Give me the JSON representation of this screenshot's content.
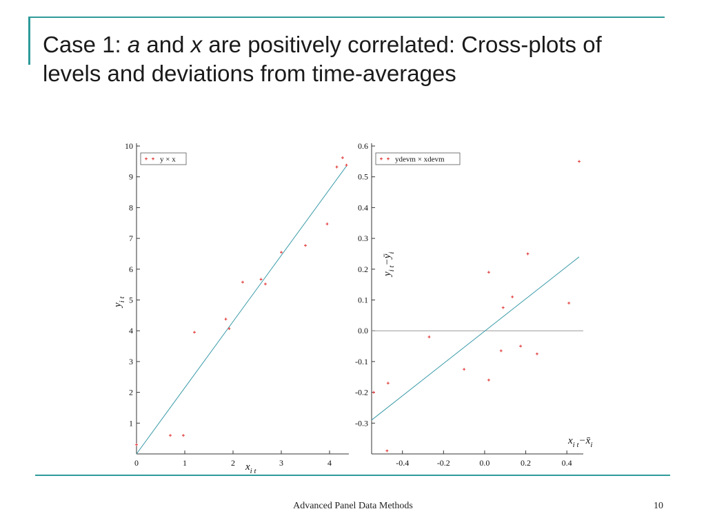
{
  "slide": {
    "title_parts": [
      "Case 1: ",
      "a",
      " and ",
      "x",
      " are positively correlated: Cross-plots of levels and deviations from time-averages"
    ],
    "footer": "Advanced Panel Data Methods",
    "page_number": "10",
    "accent_color": "#2e9a9a"
  },
  "chart_data": [
    {
      "type": "scatter",
      "legend": "y × x",
      "legend_position": "top-left",
      "xlabel_main": "x",
      "xlabel_sub": "i t",
      "ylabel_main": "y",
      "ylabel_sub": "i t",
      "xlim": [
        0,
        4.4
      ],
      "ylim": [
        0,
        10
      ],
      "xticks": [
        0,
        1,
        2,
        3,
        4
      ],
      "yticks": [
        1,
        2,
        3,
        4,
        5,
        6,
        7,
        8,
        9,
        10
      ],
      "points": [
        [
          0.0,
          0.3
        ],
        [
          0.7,
          0.6
        ],
        [
          0.97,
          0.6
        ],
        [
          1.2,
          3.95
        ],
        [
          1.85,
          4.38
        ],
        [
          1.92,
          4.07
        ],
        [
          2.2,
          5.58
        ],
        [
          2.58,
          5.67
        ],
        [
          2.67,
          5.52
        ],
        [
          3.0,
          6.55
        ],
        [
          3.5,
          6.77
        ],
        [
          3.95,
          7.47
        ],
        [
          4.15,
          9.32
        ],
        [
          4.27,
          9.62
        ],
        [
          4.35,
          9.38
        ]
      ],
      "fit_line": [
        [
          0.0,
          0.0
        ],
        [
          4.35,
          9.35
        ]
      ],
      "marker_color": "#e03030",
      "line_color": "#3a9aa8"
    },
    {
      "type": "scatter",
      "legend": "ydevm × xdevm",
      "legend_position": "top-left",
      "xlabel_main": "x",
      "xlabel_sub": "i t",
      "xlabel_rest": "−x̄",
      "xlabel_rest_sub": "i",
      "ylabel_main": "y",
      "ylabel_sub": "i t",
      "ylabel_rest": "−ȳ",
      "ylabel_rest_sub": "i",
      "xlim": [
        -0.55,
        0.48
      ],
      "ylim": [
        -0.4,
        0.6
      ],
      "xticks": [
        -0.4,
        -0.2,
        0.0,
        0.2,
        0.4
      ],
      "xtick_labels": [
        "-0.4",
        "-0.2",
        "0.0",
        "0.2",
        "0.4"
      ],
      "yticks": [
        -0.3,
        -0.2,
        -0.1,
        0.0,
        0.1,
        0.2,
        0.3,
        0.4,
        0.5,
        0.6
      ],
      "ytick_labels": [
        "-0.3",
        "-0.2",
        "-0.1",
        "0.0",
        "0.1",
        "0.2",
        "0.3",
        "0.4",
        "0.5",
        "0.6"
      ],
      "points": [
        [
          -0.54,
          -0.2
        ],
        [
          -0.47,
          -0.17
        ],
        [
          -0.475,
          -0.39
        ],
        [
          -0.27,
          -0.02
        ],
        [
          -0.1,
          -0.125
        ],
        [
          0.02,
          0.19
        ],
        [
          0.02,
          -0.16
        ],
        [
          0.08,
          -0.065
        ],
        [
          0.09,
          0.075
        ],
        [
          0.135,
          0.11
        ],
        [
          0.175,
          -0.05
        ],
        [
          0.21,
          0.25
        ],
        [
          0.255,
          -0.075
        ],
        [
          0.41,
          0.09
        ],
        [
          0.46,
          0.55
        ]
      ],
      "fit_line": [
        [
          -0.55,
          -0.29
        ],
        [
          0.46,
          0.24
        ]
      ],
      "zero_line": 0.0,
      "marker_color": "#e03030",
      "line_color": "#3a9aa8",
      "zero_line_color": "#999999"
    }
  ]
}
